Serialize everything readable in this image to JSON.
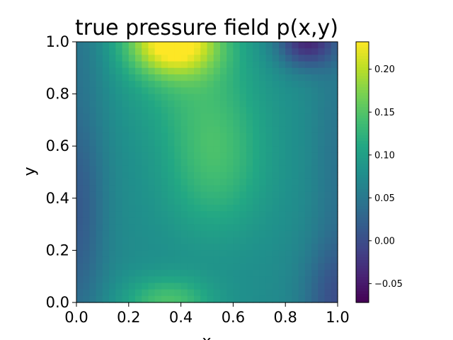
{
  "chart_data": {
    "type": "heatmap",
    "title": "true pressure field p(x,y)",
    "xlabel": "x",
    "ylabel": "y",
    "xlim": [
      0.0,
      1.0
    ],
    "ylim": [
      0.0,
      1.0
    ],
    "colormap": "viridis",
    "color_range": [
      -0.072,
      0.232
    ],
    "x_ticks": [
      "0.0",
      "0.2",
      "0.4",
      "0.6",
      "0.8",
      "1.0"
    ],
    "y_ticks": [
      "0.0",
      "0.2",
      "0.4",
      "0.6",
      "0.8",
      "1.0"
    ],
    "colorbar_ticks": [
      "0.20",
      "0.15",
      "0.10",
      "0.05",
      "0.00",
      "−0.05"
    ],
    "grid": false,
    "field_features": [
      {
        "feature": "maximum",
        "x": 0.37,
        "y": 1.0,
        "value": 0.232
      },
      {
        "feature": "minimum",
        "x": 0.88,
        "y": 1.0,
        "value": -0.072
      },
      {
        "feature": "local maximum",
        "x": 0.53,
        "y": 0.55,
        "value": 0.13
      },
      {
        "feature": "local maximum",
        "x": 0.35,
        "y": 0.0,
        "value": 0.14
      },
      {
        "feature": "low region",
        "x": 0.0,
        "y": 0.3,
        "value": 0.02
      },
      {
        "feature": "low region",
        "x": 1.0,
        "y": 0.0,
        "value": -0.01
      }
    ]
  }
}
